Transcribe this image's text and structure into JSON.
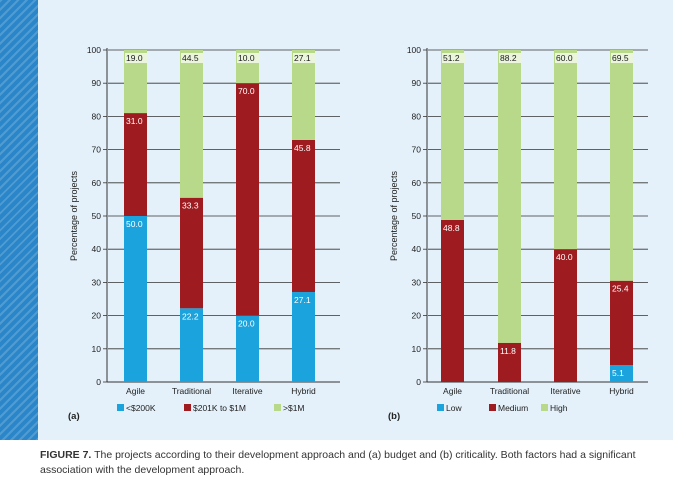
{
  "caption": {
    "label": "FIGURE 7.",
    "text": "The projects according to their development approach and (a) budget and (b) criticality. Both factors had a significant association with the development approach."
  },
  "colors": {
    "blue": "#1aa3dd",
    "red": "#9e1b20",
    "green": "#b8d98a"
  },
  "chart_data": [
    {
      "type": "bar",
      "stacked": true,
      "panel_label": "(a)",
      "ylabel": "Percentage of projects",
      "ylim": [
        0,
        100
      ],
      "yticks": [
        "0",
        "10",
        "20",
        "30",
        "40",
        "50",
        "60",
        "70",
        "80",
        "90",
        "100"
      ],
      "categories": [
        "Agile",
        "Traditional",
        "Iterative",
        "Hybrid"
      ],
      "legend_position": "bottom",
      "series": [
        {
          "name": "<$200K",
          "color": "#1aa3dd",
          "values": [
            50.0,
            22.2,
            20.0,
            27.1
          ],
          "labels": [
            "50.0",
            "22.2",
            "20.0",
            "27.1"
          ]
        },
        {
          "name": "$201K to $1M",
          "color": "#9e1b20",
          "values": [
            31.0,
            33.3,
            70.0,
            45.8
          ],
          "labels": [
            "31.0",
            "33.3",
            "70.0",
            "45.8"
          ]
        },
        {
          "name": ">$1M",
          "color": "#b8d98a",
          "values": [
            19.0,
            44.5,
            10.0,
            27.1
          ],
          "labels": [
            "19.0",
            "44.5",
            "10.0",
            "27.1"
          ]
        }
      ]
    },
    {
      "type": "bar",
      "stacked": true,
      "panel_label": "(b)",
      "ylabel": "Percentage of projects",
      "ylim": [
        0,
        100
      ],
      "yticks": [
        "0",
        "10",
        "20",
        "30",
        "40",
        "50",
        "60",
        "70",
        "80",
        "90",
        "100"
      ],
      "categories": [
        "Agile",
        "Traditional",
        "Iterative",
        "Hybrid"
      ],
      "legend_position": "bottom",
      "series": [
        {
          "name": "Low",
          "color": "#1aa3dd",
          "values": [
            0,
            0,
            0,
            5.1
          ],
          "labels": [
            "",
            "",
            "",
            "5.1"
          ]
        },
        {
          "name": "Medium",
          "color": "#9e1b20",
          "values": [
            48.8,
            11.8,
            40.0,
            25.4
          ],
          "labels": [
            "48.8",
            "11.8",
            "40.0",
            "25.4"
          ]
        },
        {
          "name": "High",
          "color": "#b8d98a",
          "values": [
            51.2,
            88.2,
            60.0,
            69.5
          ],
          "labels": [
            "51.2",
            "88.2",
            "60.0",
            "69.5"
          ]
        }
      ]
    }
  ]
}
